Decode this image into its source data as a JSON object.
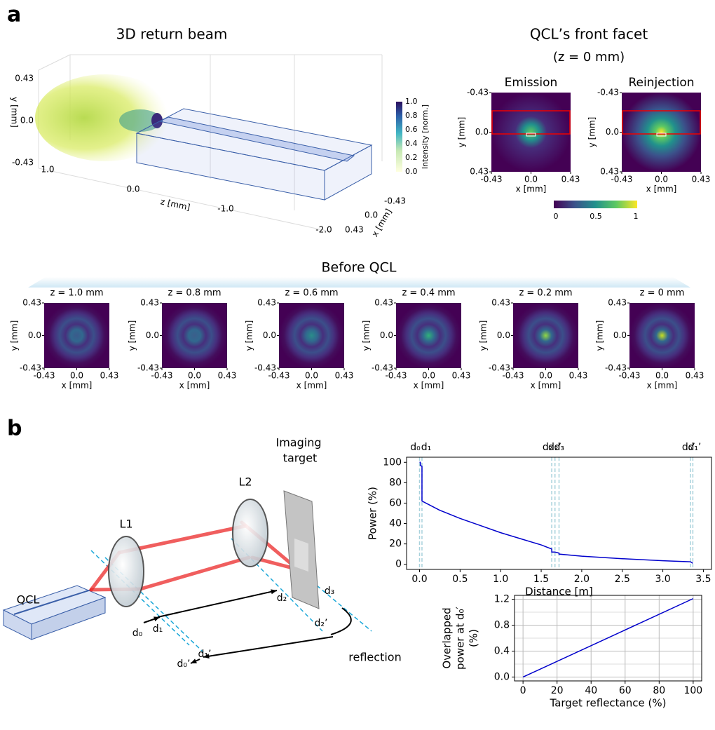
{
  "panel_a": {
    "label": "a",
    "beam_3d": {
      "title": "3D return beam",
      "y_ticks": [
        "0.43",
        "0.0",
        "-0.43"
      ],
      "y_label": "y [mm]",
      "z_ticks": [
        "1.0",
        "0.0",
        "-1.0",
        "-2.0"
      ],
      "z_label": "z [mm]",
      "x_ticks": [
        "-0.43",
        "0.0",
        "0.43"
      ],
      "x_label": "x [mm]",
      "colorbar": {
        "label": "Intensity [norm.]",
        "ticks": [
          "1.0",
          "0.8",
          "0.6",
          "0.4",
          "0.2",
          "0.0"
        ]
      }
    },
    "facet": {
      "title": "QCL’s front facet",
      "subtitle": "(z = 0 mm)",
      "maps": [
        "Emission",
        "Reinjection"
      ],
      "y_ticks": [
        "-0.43",
        "0.0",
        "0.43"
      ],
      "x_ticks": [
        "-0.43",
        "0.0",
        "0.43"
      ],
      "x_label": "x [mm]",
      "y_label": "y [mm]",
      "colorbar_ticks": [
        "0",
        "0.5",
        "1"
      ]
    },
    "before": {
      "title": "Before QCL",
      "maps": [
        "z = 1.0 mm",
        "z = 0.8 mm",
        "z = 0.6 mm",
        "z = 0.4 mm",
        "z = 0.2 mm",
        "z = 0 mm"
      ],
      "y_ticks": [
        "0.43",
        "0.0",
        "-0.43"
      ],
      "x_ticks": [
        "-0.43",
        "0.0",
        "0.43"
      ],
      "x_label": "x [mm]",
      "y_label": "y [mm]"
    }
  },
  "panel_b": {
    "label": "b",
    "diagram": {
      "qcl": "QCL",
      "l1": "L1",
      "l2": "L2",
      "target": [
        "Imaging",
        "target"
      ],
      "reflection": "reflection",
      "d": [
        "d₀",
        "d₁",
        "d₂",
        "d₃",
        "d₂’",
        "d₁’",
        "d₀’"
      ]
    }
  },
  "chart_data": [
    {
      "type": "line",
      "xlabel": "Distance [m]",
      "ylabel": "Power (%)",
      "x": [
        0,
        0.01,
        0.01,
        0.03,
        0.03,
        0.25,
        0.5,
        0.75,
        1.0,
        1.25,
        1.5,
        1.63,
        1.63,
        1.67,
        1.72,
        1.72,
        2.0,
        2.5,
        3.0,
        3.34,
        3.37
      ],
      "values": [
        100,
        100,
        97,
        96,
        62,
        53,
        45,
        38,
        31,
        25,
        19,
        15,
        12,
        12,
        11,
        10,
        8,
        5.5,
        3.5,
        2.5,
        1
      ],
      "color": "#0000cc",
      "xlim": [
        -0.16,
        3.6
      ],
      "ylim": [
        -5,
        105
      ],
      "xticks": [
        {
          "value": 0,
          "label": "0.0"
        },
        0.5,
        {
          "value": 1,
          "label": "1.0"
        },
        1.5,
        {
          "value": 2,
          "label": "2.0"
        },
        2.5,
        {
          "value": 3,
          "label": "3.0"
        },
        3.5
      ],
      "yticks": [
        0,
        20,
        40,
        60,
        80,
        100
      ],
      "markers": {
        "x": [
          0,
          0.03,
          1.63,
          1.67,
          1.72,
          3.34,
          3.37
        ],
        "labels": [
          "d₀",
          "d₁",
          "d₂",
          "d₃",
          "d₂’",
          "d₁’",
          "d₀’"
        ],
        "color": "#a8d2dc"
      },
      "grid": false
    },
    {
      "type": "line",
      "xlabel": "Target reflectance (%)",
      "ylabel": [
        "Overlapped",
        "power at d₀′",
        "(%)"
      ],
      "x": [
        0,
        100
      ],
      "values": [
        0,
        1.21
      ],
      "color": "#0000cc",
      "xlim": [
        -5,
        105
      ],
      "ylim": [
        -0.06,
        1.26
      ],
      "xticks": [
        0,
        20,
        40,
        60,
        80,
        100
      ],
      "yticks": [
        {
          "value": 0,
          "label": "0.0"
        },
        0.4,
        0.8,
        1.2
      ],
      "yminorticks": [
        0.2,
        0.6,
        1.0
      ],
      "grid": true
    }
  ]
}
